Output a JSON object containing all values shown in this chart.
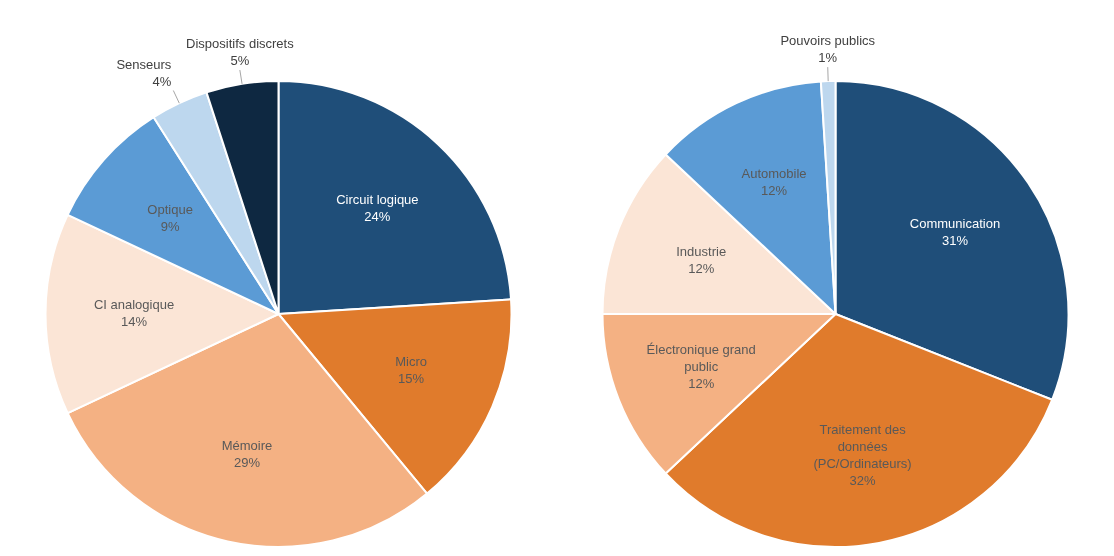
{
  "chart_data": [
    {
      "type": "pie",
      "categories": [
        "Circuit logique",
        "Micro",
        "Mémoire",
        "CI analogique",
        "Optique",
        "Senseurs",
        "Dispositifs discrets"
      ],
      "values": [
        24,
        15,
        29,
        14,
        9,
        4,
        5
      ],
      "colors": [
        "#1f4e79",
        "#e07b2c",
        "#f4b183",
        "#fbe5d6",
        "#5b9bd5",
        "#bdd7ee",
        "#0e2841"
      ],
      "value_labels": [
        "24%",
        "15%",
        "29%",
        "14%",
        "9%",
        "4%",
        "5%"
      ]
    },
    {
      "type": "pie",
      "categories": [
        "Communication",
        "Traitement des données (PC/Ordinateurs)",
        "Électronique grand public",
        "Industrie",
        "Automobile",
        "Pouvoirs publics"
      ],
      "values": [
        31,
        32,
        12,
        12,
        12,
        1
      ],
      "colors": [
        "#1f4e79",
        "#e07b2c",
        "#f4b183",
        "#fbe5d6",
        "#5b9bd5",
        "#bdd7ee"
      ],
      "value_labels": [
        "31%",
        "32%",
        "12%",
        "12%",
        "12%",
        "1%"
      ]
    }
  ]
}
